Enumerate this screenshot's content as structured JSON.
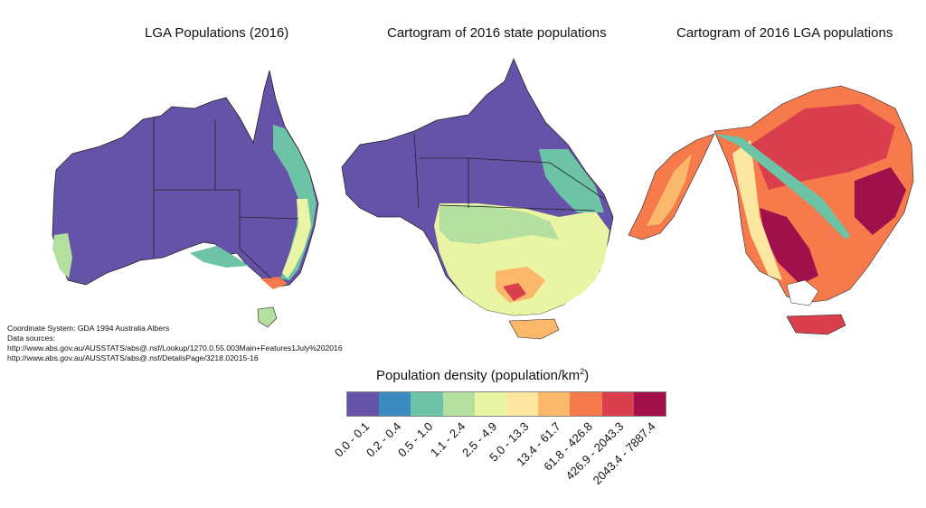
{
  "titles": {
    "map1": "LGA Populations (2016)",
    "map2": "Cartogram of 2016 state populations",
    "map3": "Cartogram of 2016 LGA populations"
  },
  "metadata": {
    "coordinate_system": "Coordinate System: GDA 1994 Australia Albers",
    "data_sources_label": "Data sources:",
    "source_1": "http://www.abs.gov.au/AUSSTATS/abs@.nsf/Lookup/1270.0.55.003Main+Features1July%202016",
    "source_2": "http://www.abs.gov.au/AUSSTATS/abs@.nsf/DetailsPage/3218.02015-16"
  },
  "legend": {
    "title": "Population density (population/km",
    "title_superscript": "2",
    "title_close": ")",
    "classes": [
      {
        "label": "0.0 - 0.1",
        "color": "#6652a8"
      },
      {
        "label": "0.2 - 0.4",
        "color": "#3b8bc2"
      },
      {
        "label": "0.5 - 1.0",
        "color": "#6cc3a5"
      },
      {
        "label": "1.1 - 2.4",
        "color": "#b4e09f"
      },
      {
        "label": "2.5 - 4.9",
        "color": "#eaf5a4"
      },
      {
        "label": "5.0 - 13.3",
        "color": "#fbe7a0"
      },
      {
        "label": "13.4 - 61.7",
        "color": "#fcb86a"
      },
      {
        "label": "61.8 - 426.8",
        "color": "#f67a4c"
      },
      {
        "label": "426.9 - 2043.3",
        "color": "#d93f4d"
      },
      {
        "label": "2043.4 - 7887.4",
        "color": "#a0104a"
      }
    ]
  }
}
